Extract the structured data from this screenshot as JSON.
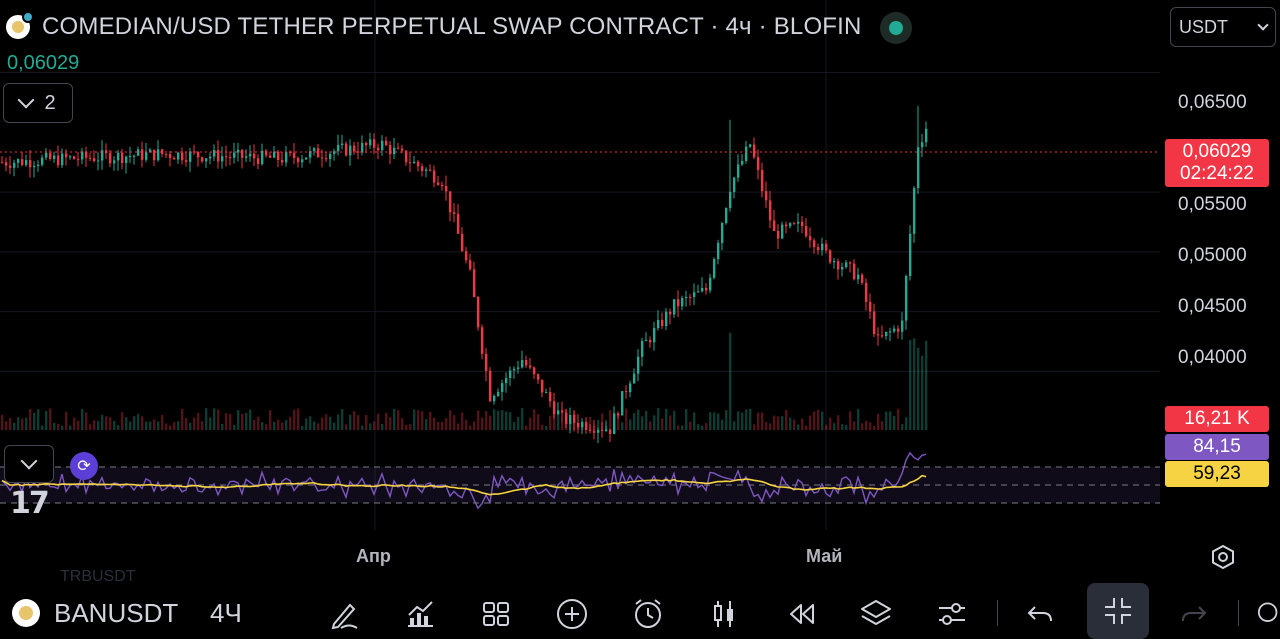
{
  "header": {
    "title": "COMEDIAN/USD TETHER PERPETUAL SWAP CONTRACT · 4ч · BLOFIN",
    "current_price": "0,06029",
    "indicators_collapse_count": "2",
    "currency": "USDT"
  },
  "price_axis": {
    "labels": [
      "0,06500",
      "0,05500",
      "0,05000",
      "0,04500",
      "0,04000"
    ],
    "last_price": "0,06029",
    "countdown": "02:24:22",
    "volume_tag": "16,21 K"
  },
  "rsi": {
    "rsi_value": "84,15",
    "ma_value": "59,23"
  },
  "time_axis": {
    "labels": [
      "Апр",
      "Май"
    ]
  },
  "bottom_toolbar": {
    "symbol": "BANUSDT",
    "interval": "4Ч",
    "ghost_symbol": "TRBUSDT",
    "tools": [
      "brush-icon",
      "chart-type-icon",
      "layout-grid-icon",
      "add-icon",
      "alert-clock-icon",
      "candles-icon",
      "replay-icon",
      "layers-icon",
      "settings-sliders-icon",
      "undo-icon",
      "fullscreen-exit-icon",
      "redo-icon"
    ]
  },
  "colors": {
    "up": "#22ab94",
    "down": "#f23645",
    "rsi_line": "#7e57c2",
    "rsi_ma": "#f5d342"
  },
  "chart_data": {
    "type": "candlestick",
    "title": "COMEDIAN/USD TETHER PERPETUAL SWAP CONTRACT · 4ч · BLOFIN",
    "y_axis": {
      "range": [
        0.0351,
        0.0673
      ],
      "ticks": [
        0.065,
        0.055,
        0.05,
        0.045,
        0.04
      ]
    },
    "x_axis": {
      "ticks": [
        "Апр",
        "Май"
      ]
    },
    "last_price": 0.06029,
    "key_points": [
      {
        "phase": "range",
        "approx_close": 0.0575
      },
      {
        "phase": "crash_low",
        "approx_close": 0.0355
      },
      {
        "phase": "rally_high",
        "approx_high": 0.0648
      },
      {
        "phase": "pullback_low",
        "approx_low": 0.0416
      },
      {
        "phase": "last",
        "approx_close": 0.06029
      }
    ],
    "rsi": {
      "upper_band": 70,
      "lower_band": 30,
      "last_rsi": 84.15,
      "last_ma": 59.23
    }
  }
}
